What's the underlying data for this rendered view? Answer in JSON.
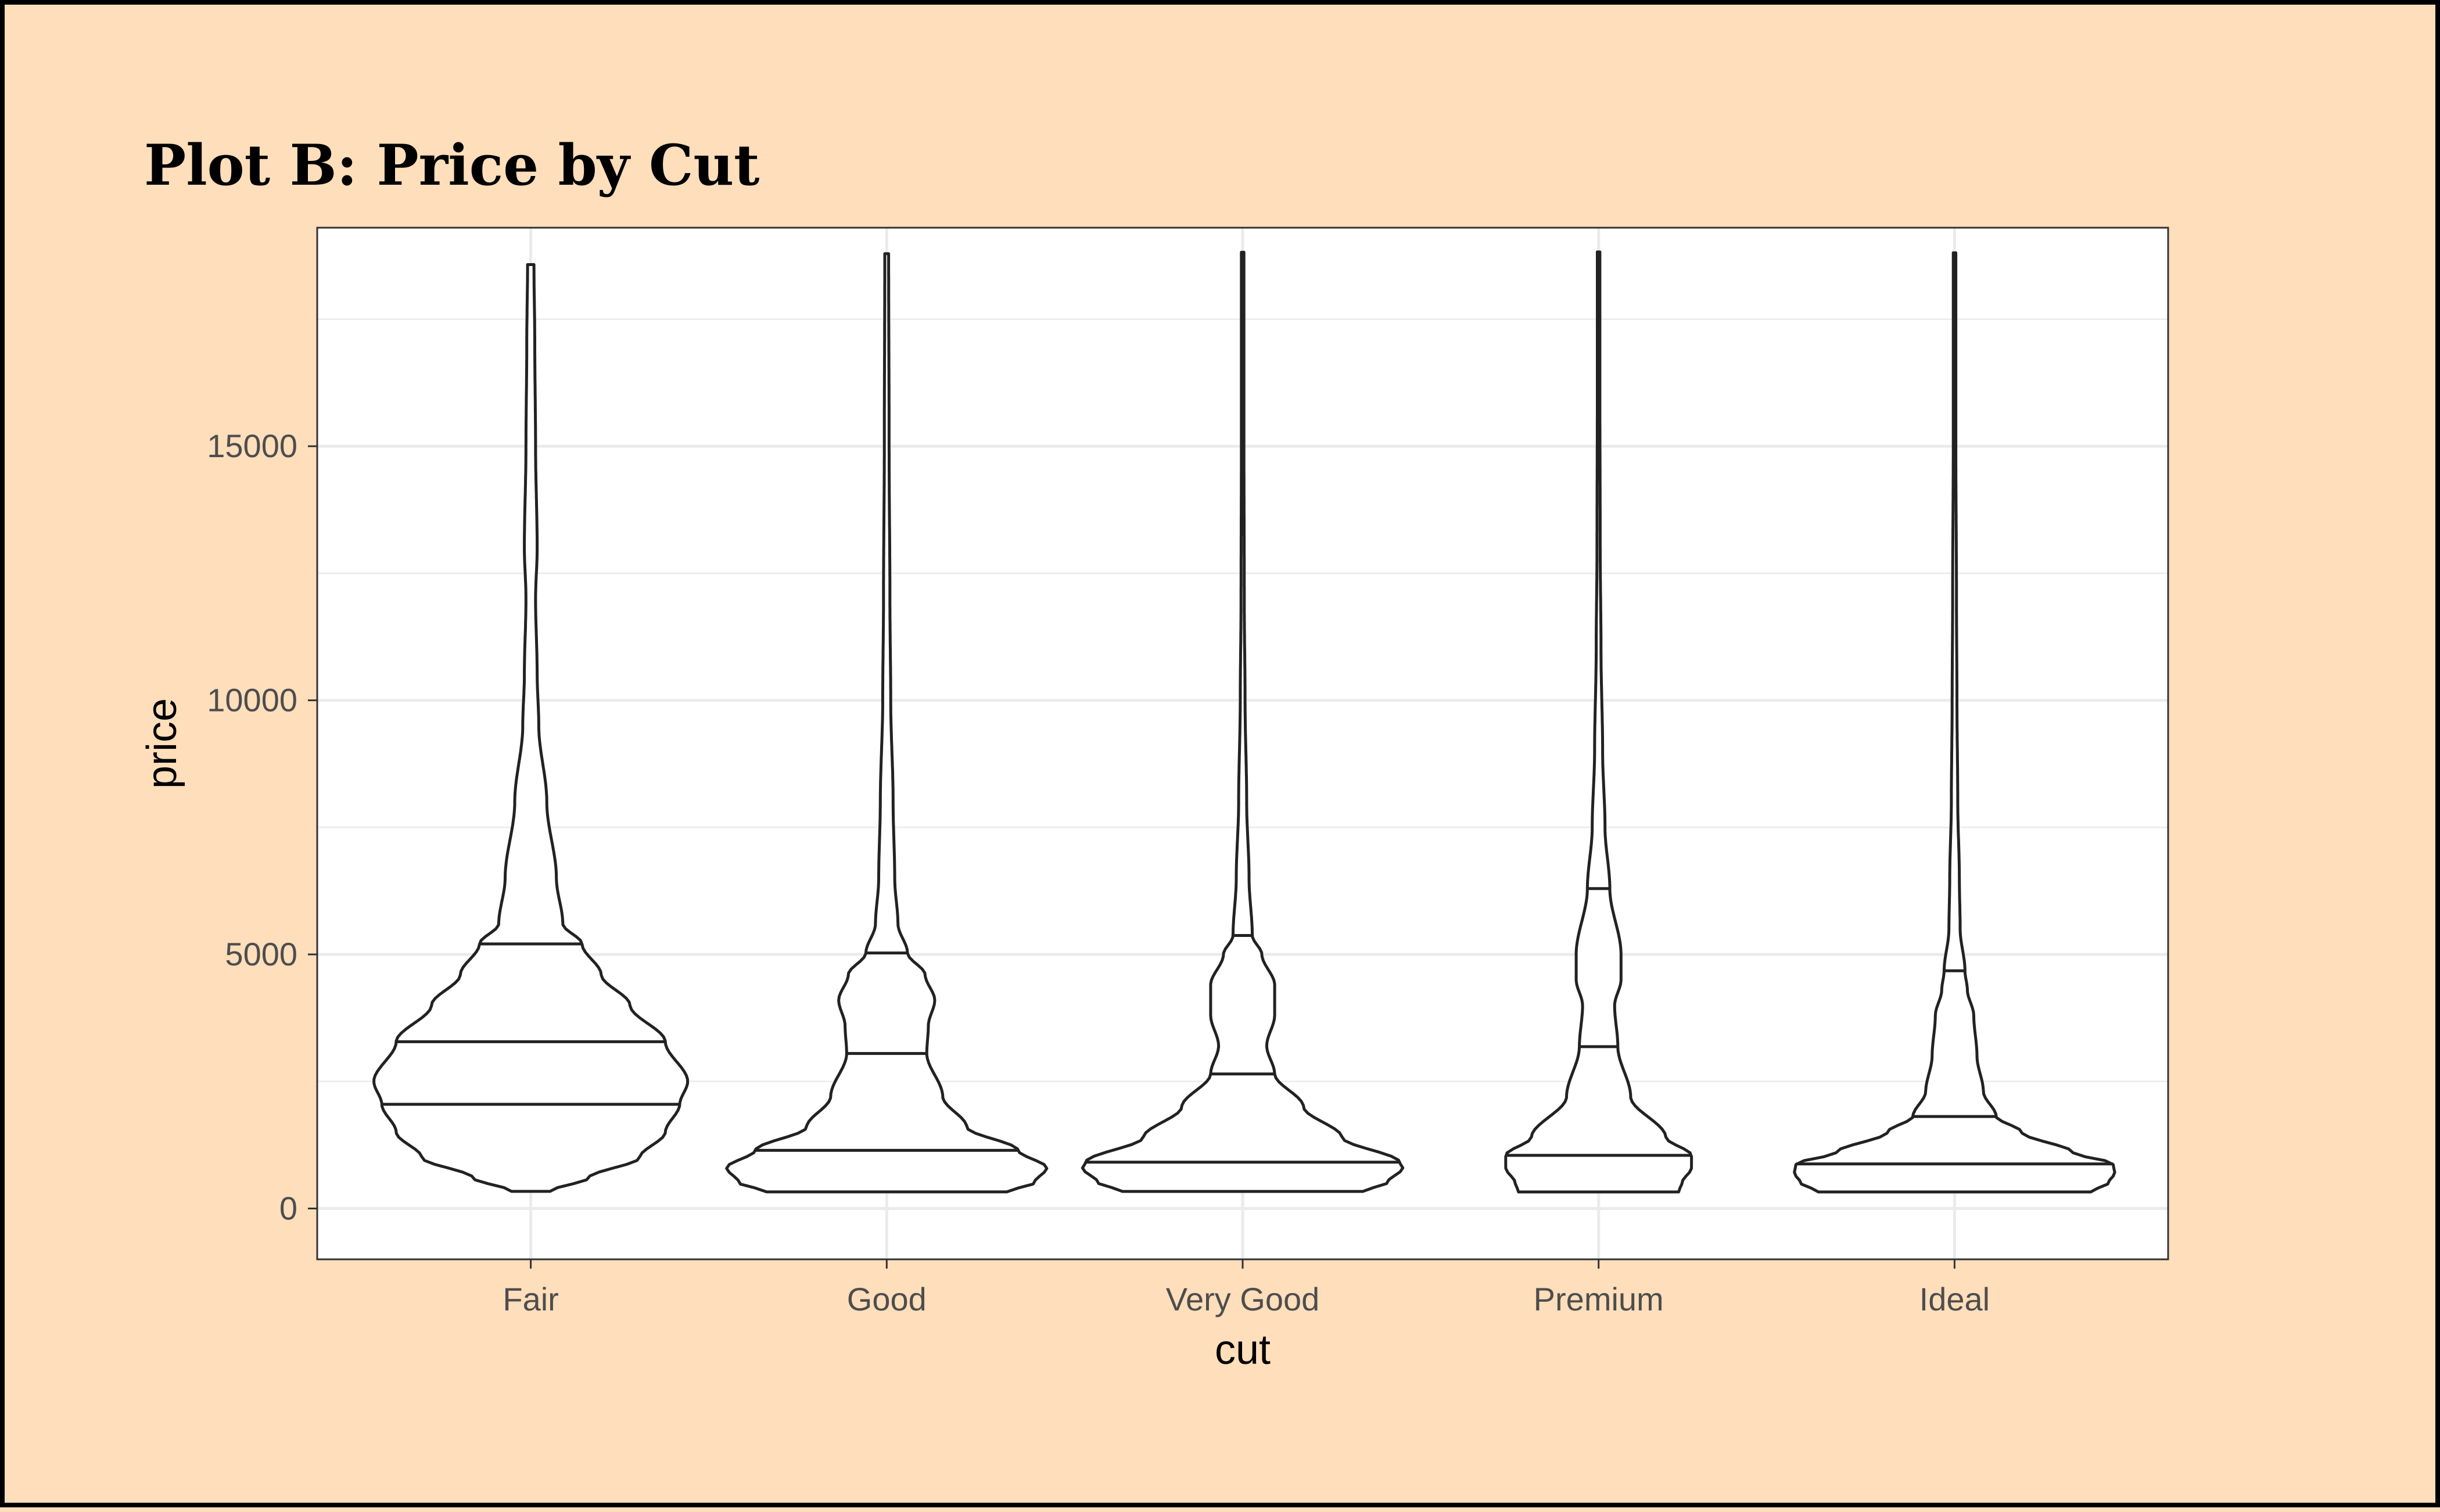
{
  "chart_data": {
    "type": "violin",
    "title": "Plot B: Price by Cut",
    "xlabel": "cut",
    "ylabel": "price",
    "categories": [
      "Fair",
      "Good",
      "Very Good",
      "Premium",
      "Ideal"
    ],
    "ylim": [
      -1000,
      19300
    ],
    "yticks": [
      0,
      5000,
      10000,
      15000
    ],
    "grid": true,
    "quantile_lines": [
      0.25,
      0.5,
      0.75
    ],
    "violins": [
      {
        "name": "Fair",
        "min": 337,
        "max": 18574,
        "quantiles": [
          2050,
          3282,
          5206
        ],
        "density": [
          [
            337,
            0.12
          ],
          [
            600,
            0.36
          ],
          [
            1000,
            0.68
          ],
          [
            1500,
            0.84
          ],
          [
            2050,
            0.93
          ],
          [
            2500,
            0.98
          ],
          [
            3282,
            0.84
          ],
          [
            4000,
            0.62
          ],
          [
            4600,
            0.44
          ],
          [
            5206,
            0.32
          ],
          [
            5600,
            0.2
          ],
          [
            6500,
            0.16
          ],
          [
            8000,
            0.1
          ],
          [
            9500,
            0.05
          ],
          [
            10500,
            0.04
          ],
          [
            12000,
            0.03
          ],
          [
            13000,
            0.04
          ],
          [
            15000,
            0.03
          ],
          [
            17000,
            0.025
          ],
          [
            18574,
            0.02
          ]
        ]
      },
      {
        "name": "Good",
        "min": 327,
        "max": 18788,
        "quantiles": [
          1145,
          3050,
          5028
        ],
        "density": [
          [
            327,
            0.75
          ],
          [
            500,
            0.92
          ],
          [
            800,
            1.0
          ],
          [
            1145,
            0.82
          ],
          [
            1600,
            0.5
          ],
          [
            2200,
            0.35
          ],
          [
            3050,
            0.25
          ],
          [
            3600,
            0.26
          ],
          [
            4100,
            0.3
          ],
          [
            4600,
            0.24
          ],
          [
            5028,
            0.13
          ],
          [
            5600,
            0.07
          ],
          [
            6500,
            0.05
          ],
          [
            8000,
            0.04
          ],
          [
            10000,
            0.025
          ],
          [
            12000,
            0.02
          ],
          [
            15000,
            0.015
          ],
          [
            18788,
            0.012
          ]
        ]
      },
      {
        "name": "Very Good",
        "min": 336,
        "max": 18818,
        "quantiles": [
          912,
          2648,
          5373
        ],
        "density": [
          [
            336,
            0.75
          ],
          [
            500,
            0.9
          ],
          [
            800,
            1.0
          ],
          [
            912,
            0.98
          ],
          [
            1400,
            0.62
          ],
          [
            2000,
            0.38
          ],
          [
            2648,
            0.2
          ],
          [
            3200,
            0.15
          ],
          [
            3800,
            0.2
          ],
          [
            4400,
            0.2
          ],
          [
            5000,
            0.12
          ],
          [
            5373,
            0.06
          ],
          [
            6500,
            0.04
          ],
          [
            8000,
            0.025
          ],
          [
            10000,
            0.015
          ],
          [
            12000,
            0.01
          ],
          [
            15000,
            0.008
          ],
          [
            18818,
            0.008
          ]
        ]
      },
      {
        "name": "Premium",
        "min": 326,
        "max": 18823,
        "quantiles": [
          1046,
          3185,
          6296
        ],
        "density": [
          [
            326,
            0.5
          ],
          [
            500,
            0.52
          ],
          [
            800,
            0.58
          ],
          [
            1046,
            0.58
          ],
          [
            1400,
            0.42
          ],
          [
            2200,
            0.2
          ],
          [
            3185,
            0.12
          ],
          [
            4000,
            0.1
          ],
          [
            4500,
            0.14
          ],
          [
            5000,
            0.14
          ],
          [
            6296,
            0.07
          ],
          [
            7500,
            0.04
          ],
          [
            9000,
            0.025
          ],
          [
            11000,
            0.015
          ],
          [
            13000,
            0.01
          ],
          [
            16000,
            0.008
          ],
          [
            18823,
            0.008
          ]
        ]
      },
      {
        "name": "Ideal",
        "min": 326,
        "max": 18806,
        "quantiles": [
          878,
          1810,
          4678
        ],
        "density": [
          [
            326,
            0.85
          ],
          [
            500,
            0.96
          ],
          [
            700,
            1.0
          ],
          [
            878,
            0.99
          ],
          [
            1100,
            0.74
          ],
          [
            1500,
            0.42
          ],
          [
            1810,
            0.26
          ],
          [
            2300,
            0.18
          ],
          [
            3000,
            0.14
          ],
          [
            3800,
            0.12
          ],
          [
            4300,
            0.08
          ],
          [
            4678,
            0.065
          ],
          [
            5500,
            0.035
          ],
          [
            6500,
            0.03
          ],
          [
            8000,
            0.02
          ],
          [
            10000,
            0.015
          ],
          [
            12000,
            0.012
          ],
          [
            15000,
            0.008
          ],
          [
            18806,
            0.008
          ]
        ]
      }
    ]
  }
}
